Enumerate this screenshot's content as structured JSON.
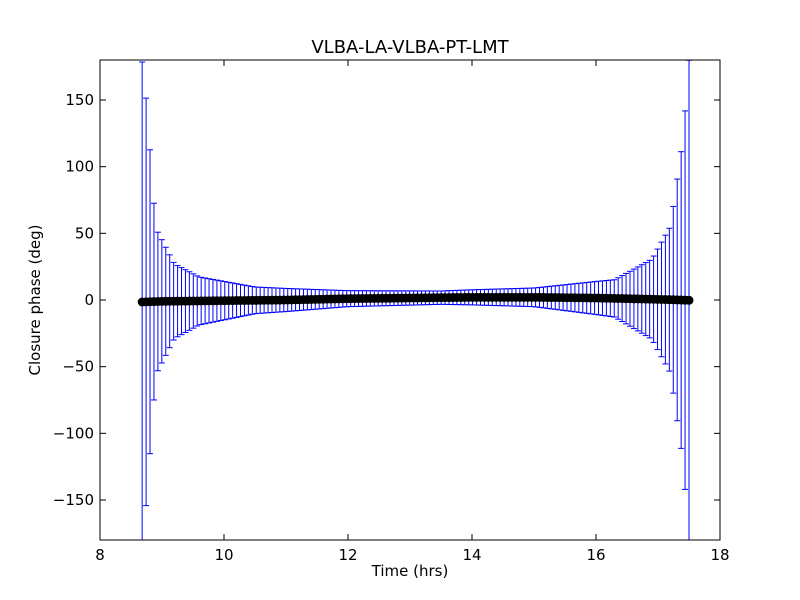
{
  "chart_data": {
    "type": "scatter",
    "title": "VLBA-LA-VLBA-PT-LMT",
    "xlabel": "Time (hrs)",
    "ylabel": "Closure phase (deg)",
    "xlim": [
      8,
      18
    ],
    "ylim": [
      -180,
      180
    ],
    "xticks": [
      "8",
      "10",
      "12",
      "14",
      "16",
      "18"
    ],
    "xtick_values": [
      8,
      10,
      12,
      14,
      16,
      18
    ],
    "yticks": [
      "150",
      "100",
      "50",
      "0",
      "−50",
      "−100",
      "−150"
    ],
    "ytick_values": [
      150,
      100,
      50,
      0,
      -50,
      -100,
      -150
    ],
    "grid": false,
    "series": [
      {
        "marker": "circle",
        "color": "#000000",
        "errorbar_color": "#0000ff",
        "t_start": 8.68,
        "t_end": 17.5,
        "n_points": 140,
        "y_values_at_samples": {
          "x": [
            8.68,
            9.0,
            10.0,
            11.0,
            12.0,
            13.0,
            14.0,
            15.0,
            16.0,
            17.0,
            17.5
          ],
          "y": [
            -1.5,
            -1.0,
            -0.5,
            0.0,
            1.0,
            1.5,
            2.0,
            2.0,
            1.5,
            0.5,
            -0.2
          ]
        },
        "error_half_width_at_samples": {
          "x": [
            8.68,
            8.75,
            8.9,
            9.2,
            9.6,
            10.5,
            12.0,
            13.5,
            15.0,
            16.3,
            16.9,
            17.2,
            17.4,
            17.5
          ],
          "e": [
            180,
            150,
            55,
            28,
            18,
            10,
            6,
            5,
            7,
            14,
            30,
            55,
            120,
            180
          ]
        }
      }
    ]
  }
}
